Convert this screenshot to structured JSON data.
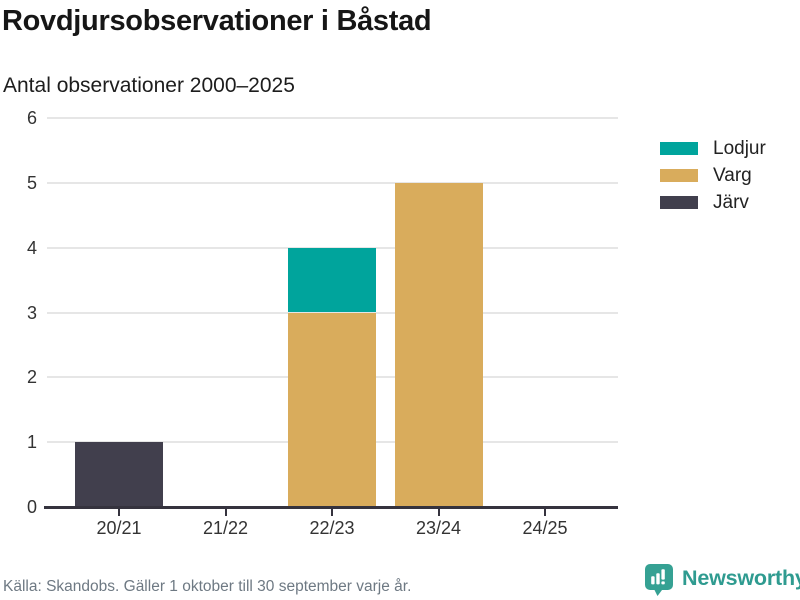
{
  "header": {
    "title": "Rovdjursobservationer i Båstad",
    "subtitle": "Antal observationer 2000–2025"
  },
  "legend": [
    {
      "label": "Lodjur",
      "color": "#00a49c"
    },
    {
      "label": "Varg",
      "color": "#d9ac5c"
    },
    {
      "label": "Järv",
      "color": "#413f4d"
    }
  ],
  "chart_data": {
    "type": "bar",
    "stacked": true,
    "title": "Rovdjursobservationer i Båstad",
    "subtitle": "Antal observationer 2000–2025",
    "categories": [
      "20/21",
      "21/22",
      "22/23",
      "23/24",
      "24/25"
    ],
    "series": [
      {
        "name": "Lodjur",
        "color": "#00a49c",
        "values": [
          0,
          0,
          1,
          0,
          0
        ]
      },
      {
        "name": "Varg",
        "color": "#d9ac5c",
        "values": [
          0,
          0,
          3,
          5,
          0
        ]
      },
      {
        "name": "Järv",
        "color": "#413f4d",
        "values": [
          1,
          0,
          0,
          0,
          0
        ]
      }
    ],
    "stack_order_bottom_to_top": [
      "Järv",
      "Varg",
      "Lodjur"
    ],
    "ylim": [
      0,
      6
    ],
    "yticks": [
      0,
      1,
      2,
      3,
      4,
      5,
      6
    ],
    "grid": true,
    "legend_position": "right",
    "xlabel": "",
    "ylabel": ""
  },
  "footer": {
    "source": "Källa: Skandobs. Gäller 1 oktober till 30 september varje år.",
    "brand": "Newsworthy"
  },
  "colors": {
    "lodjur": "#00a49c",
    "varg": "#d9ac5c",
    "jarv": "#413f4d",
    "brand_teal": "#2f9b90",
    "grid": "#e6e6e6",
    "axis": "#35333e",
    "text_dark": "#161616",
    "text_axis": "#333333",
    "text_muted": "#6e7983"
  }
}
